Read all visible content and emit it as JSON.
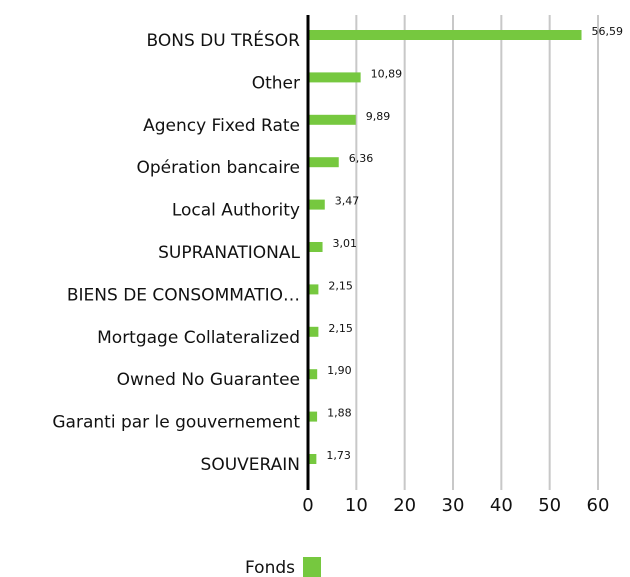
{
  "chart_data": {
    "type": "hbar",
    "categories": [
      "BONS DU TRÉSOR",
      "Other",
      "Agency Fixed Rate",
      "Opération bancaire",
      "Local Authority",
      "SUPRANATIONAL",
      "BIENS DE CONSOMMATIO…",
      "Mortgage Collateralized",
      "Owned No Guarantee",
      "Garanti par le gouvernement",
      "SOUVERAIN"
    ],
    "series": [
      {
        "name": "Fonds",
        "color": "#76c83f",
        "values": [
          56.59,
          10.89,
          9.89,
          6.36,
          3.47,
          3.01,
          2.15,
          2.15,
          1.9,
          1.88,
          1.73
        ],
        "value_labels": [
          "56,59",
          "10,89",
          "9,89",
          "6,36",
          "3,47",
          "3,01",
          "2,15",
          "2,15",
          "1,90",
          "1,88",
          "1,73"
        ]
      }
    ],
    "xlim": [
      0,
      60
    ],
    "xticks": [
      0,
      10,
      20,
      30,
      40,
      50,
      60
    ],
    "grid": true,
    "legend": "bottom"
  }
}
